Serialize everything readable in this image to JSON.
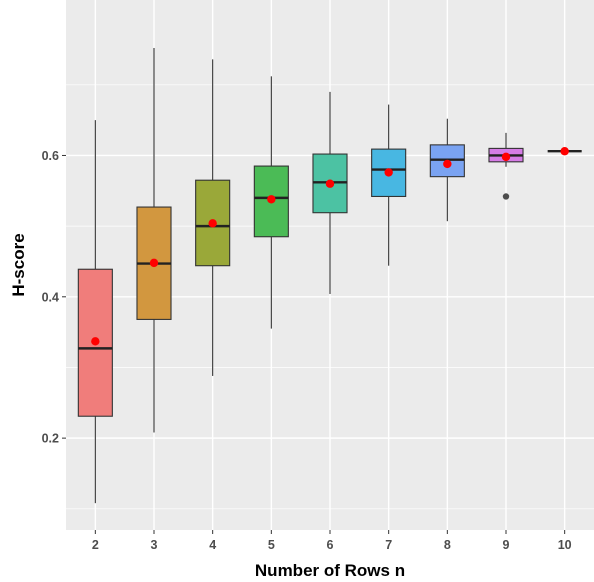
{
  "chart_data": {
    "type": "boxplot",
    "xlabel": "Number of Rows n",
    "ylabel": "H-score",
    "ylim": [
      0.07,
      0.82
    ],
    "y_ticks": [
      0.2,
      0.4,
      0.6
    ],
    "y_tick_labels": [
      "0.2",
      "0.4",
      "0.6"
    ],
    "grid": true,
    "legend": "none",
    "panel_color": "#ebebeb",
    "grid_color": "#ffffff",
    "mean_color": "#ff0000",
    "outlier_color": "#4d4d4d",
    "categories": [
      "2",
      "3",
      "4",
      "5",
      "6",
      "7",
      "8",
      "9",
      "10"
    ],
    "boxes": [
      {
        "x": "2",
        "min": 0.108,
        "q1": 0.231,
        "median": 0.327,
        "q3": 0.439,
        "max": 0.65,
        "mean": 0.337,
        "outliers": [],
        "fill": "#f07d7b"
      },
      {
        "x": "3",
        "min": 0.208,
        "q1": 0.368,
        "median": 0.447,
        "q3": 0.527,
        "max": 0.752,
        "mean": 0.448,
        "outliers": [],
        "fill": "#d2973f"
      },
      {
        "x": "4",
        "min": 0.288,
        "q1": 0.444,
        "median": 0.5,
        "q3": 0.565,
        "max": 0.736,
        "mean": 0.504,
        "outliers": [],
        "fill": "#9aa839"
      },
      {
        "x": "5",
        "min": 0.355,
        "q1": 0.485,
        "median": 0.54,
        "q3": 0.585,
        "max": 0.712,
        "mean": 0.538,
        "outliers": [],
        "fill": "#4bbb56"
      },
      {
        "x": "6",
        "min": 0.404,
        "q1": 0.519,
        "median": 0.562,
        "q3": 0.602,
        "max": 0.69,
        "mean": 0.56,
        "outliers": [],
        "fill": "#4cc2a3"
      },
      {
        "x": "7",
        "min": 0.444,
        "q1": 0.542,
        "median": 0.58,
        "q3": 0.609,
        "max": 0.672,
        "mean": 0.576,
        "outliers": [],
        "fill": "#48b7e2"
      },
      {
        "x": "8",
        "min": 0.507,
        "q1": 0.57,
        "median": 0.594,
        "q3": 0.615,
        "max": 0.652,
        "mean": 0.588,
        "outliers": [],
        "fill": "#7aa3f2"
      },
      {
        "x": "9",
        "min": 0.584,
        "q1": 0.591,
        "median": 0.6,
        "q3": 0.61,
        "max": 0.632,
        "mean": 0.598,
        "outliers": [
          0.542
        ],
        "fill": "#d67ce6"
      },
      {
        "x": "10",
        "min": 0.606,
        "q1": 0.606,
        "median": 0.606,
        "q3": 0.606,
        "max": 0.606,
        "mean": 0.606,
        "outliers": [],
        "fill": "#f38fd0"
      }
    ]
  }
}
